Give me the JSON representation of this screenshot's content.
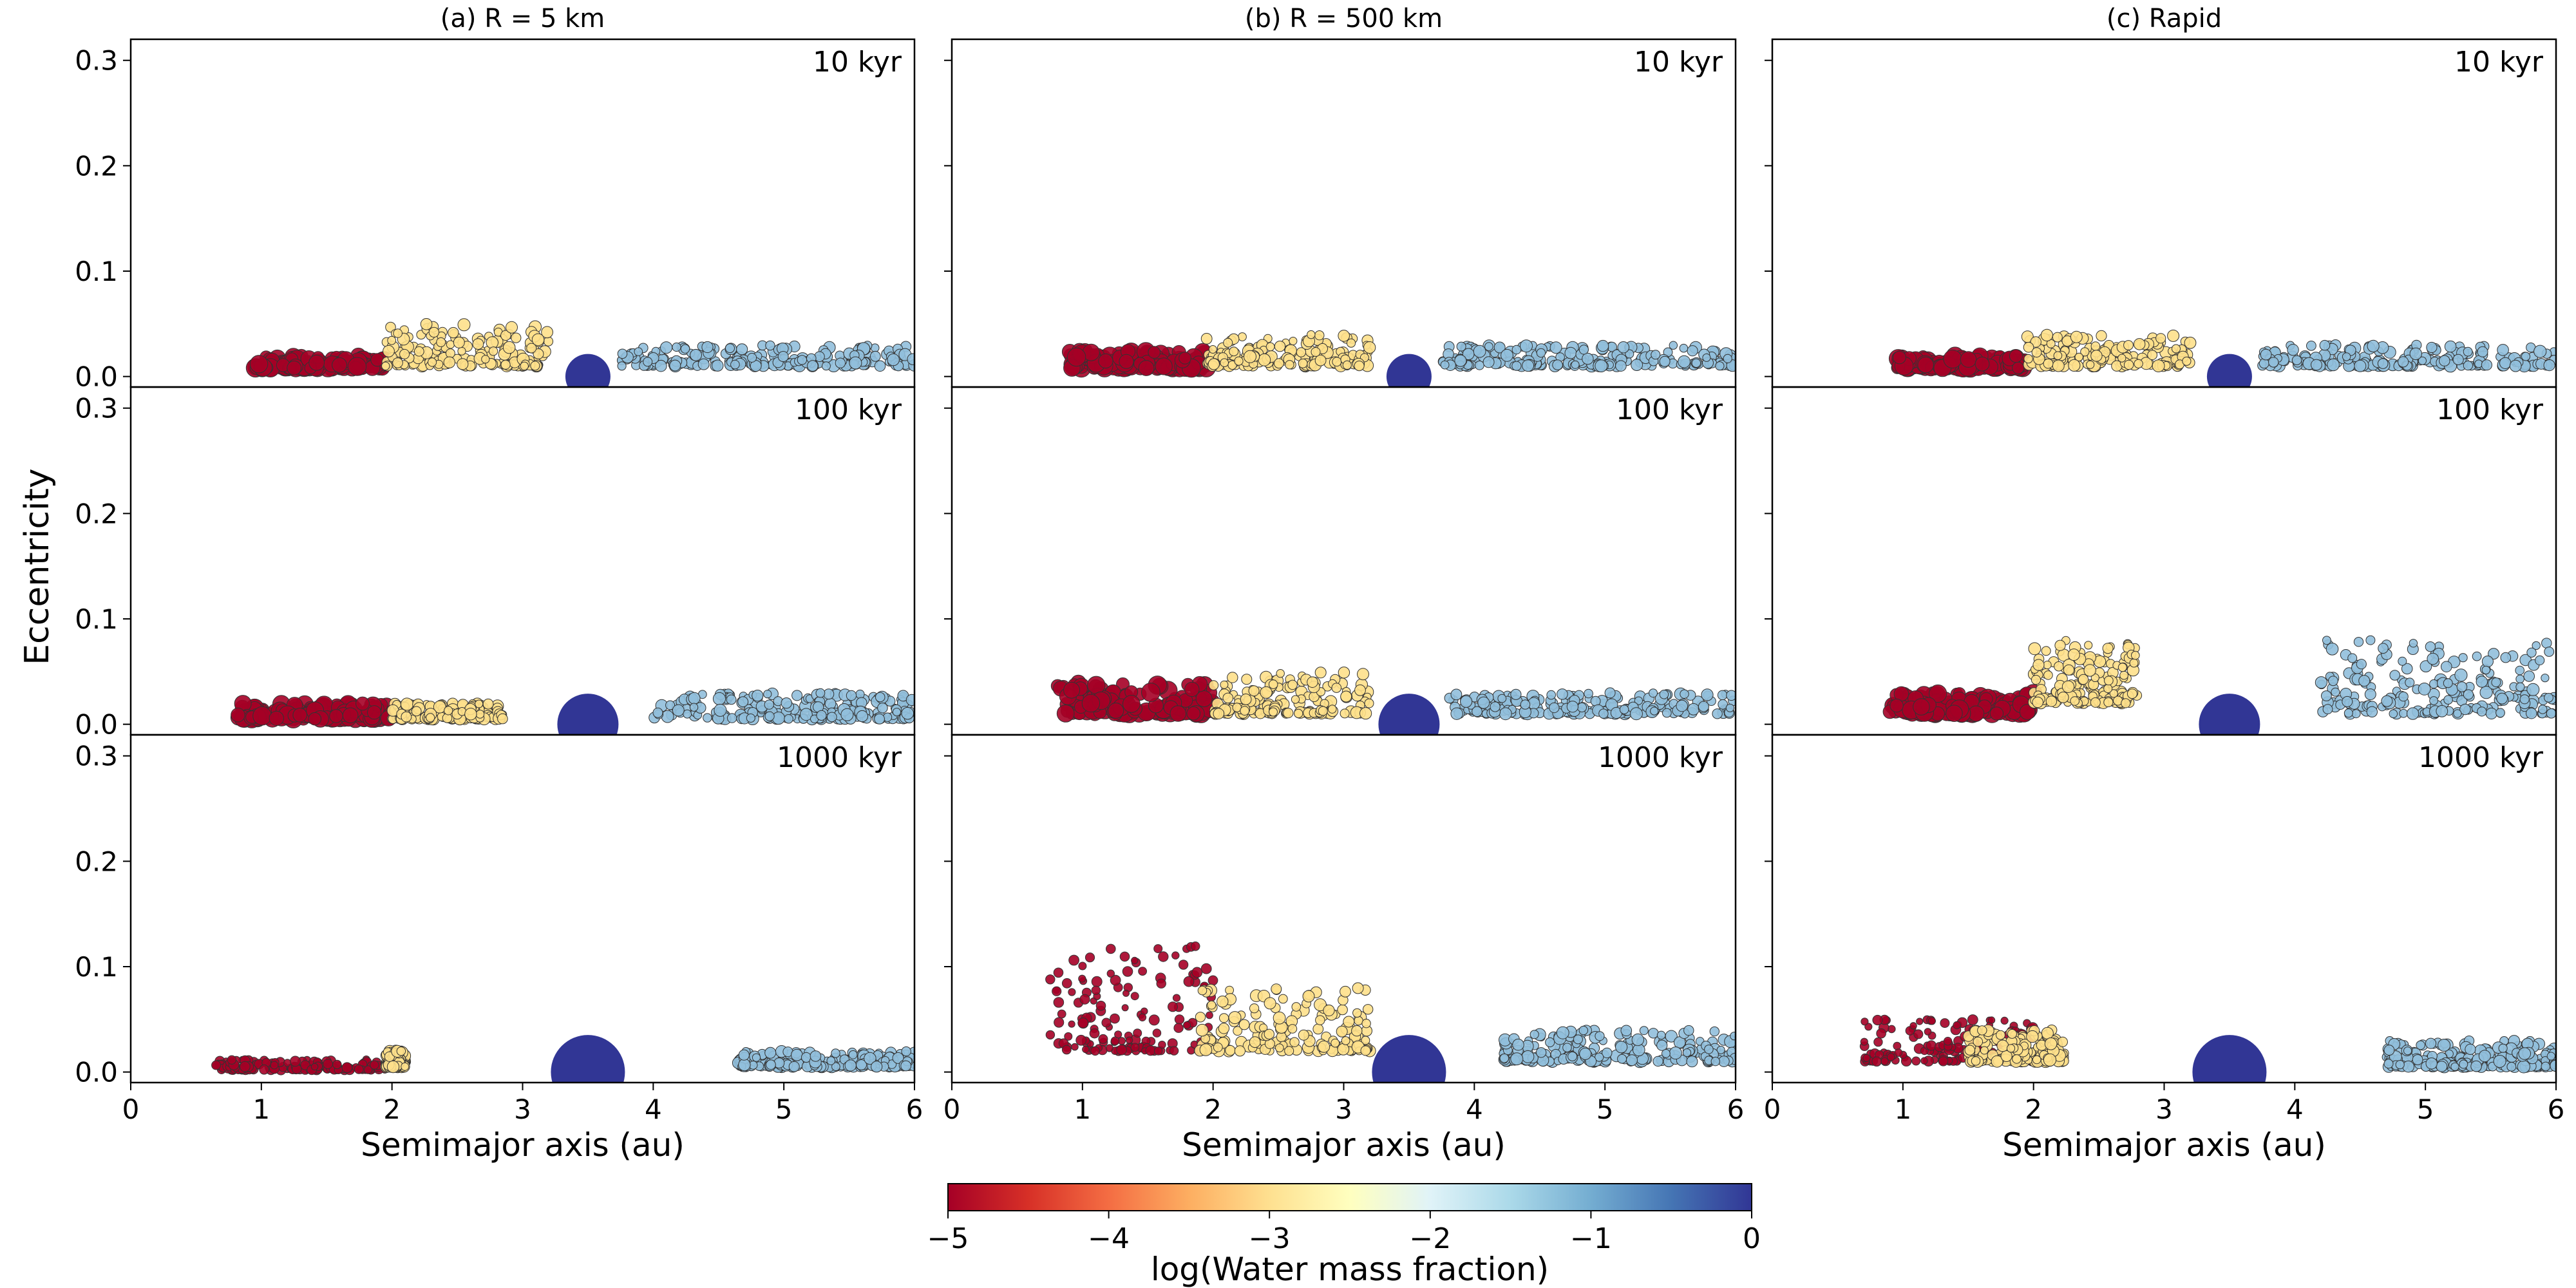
{
  "figure": {
    "ylabel": "Eccentricity",
    "xlabel": "Semimajor axis (au)",
    "colorbar": {
      "label": "log(Water mass fraction)",
      "ticks": [
        "−5",
        "−4",
        "−3",
        "−2",
        "−1",
        "0"
      ],
      "range": [
        -5,
        0
      ],
      "colormap": [
        "#a50026",
        "#d73027",
        "#f46d43",
        "#fdae61",
        "#fee090",
        "#ffffbf",
        "#e0f3f8",
        "#abd9e9",
        "#74add1",
        "#4575b4",
        "#313695"
      ]
    }
  },
  "chart_data": {
    "type": "scatter",
    "xlim": [
      0,
      6
    ],
    "ylim": [
      -0.01,
      0.32
    ],
    "xticks": [
      "0",
      "1",
      "2",
      "3",
      "4",
      "5",
      "6"
    ],
    "yticks": [
      "0.0",
      "0.1",
      "0.2",
      "0.3"
    ],
    "ytick_values": [
      0.0,
      0.1,
      0.2,
      0.3
    ],
    "point_colors": {
      "dry": "#a50026",
      "mid": "#fee08b",
      "wet": "#91bfdb",
      "planet": "#313695"
    },
    "columns": [
      {
        "id": "a",
        "title": "(a) R = 5 km",
        "bands": [
          {
            "t": "10 kyr",
            "dry": [
              0.95,
              1.95,
              0.008,
              0.02
            ],
            "mid": [
              1.95,
              3.2,
              0.01,
              0.05
            ],
            "wet": [
              3.75,
              6.0,
              0.01,
              0.03
            ]
          },
          {
            "t": "100 kyr",
            "dry": [
              0.8,
              2.0,
              0.005,
              0.02
            ],
            "mid": [
              2.0,
              2.85,
              0.005,
              0.02
            ],
            "wet": [
              4.0,
              6.0,
              0.005,
              0.03
            ]
          },
          {
            "t": "1000 kyr",
            "dry": [
              0.65,
              1.95,
              0.002,
              0.012
            ],
            "mid": [
              1.95,
              2.1,
              0.005,
              0.02
            ],
            "wet": [
              4.65,
              6.0,
              0.005,
              0.02
            ]
          }
        ]
      },
      {
        "id": "b",
        "title": "(b) R = 500 km",
        "bands": [
          {
            "t": "10 kyr",
            "dry": [
              0.9,
              1.95,
              0.008,
              0.025
            ],
            "mid": [
              1.95,
              3.2,
              0.01,
              0.04
            ],
            "wet": [
              3.75,
              6.0,
              0.01,
              0.03
            ]
          },
          {
            "t": "100 kyr",
            "dry": [
              0.8,
              2.0,
              0.01,
              0.04
            ],
            "mid": [
              2.0,
              3.2,
              0.01,
              0.05
            ],
            "wet": [
              3.8,
              6.0,
              0.01,
              0.03
            ]
          },
          {
            "t": "1000 kyr",
            "dry": [
              0.75,
              2.0,
              0.02,
              0.12
            ],
            "mid": [
              1.9,
              3.2,
              0.02,
              0.08
            ],
            "wet": [
              4.2,
              6.0,
              0.01,
              0.04
            ]
          }
        ]
      },
      {
        "id": "c",
        "title": "(c) Rapid",
        "bands": [
          {
            "t": "10 kyr",
            "dry": [
              0.95,
              1.95,
              0.008,
              0.02
            ],
            "mid": [
              1.95,
              3.2,
              0.01,
              0.04
            ],
            "wet": [
              3.75,
              6.0,
              0.01,
              0.03
            ]
          },
          {
            "t": "100 kyr",
            "dry": [
              0.9,
              2.0,
              0.01,
              0.03
            ],
            "mid": [
              2.0,
              2.8,
              0.02,
              0.08
            ],
            "wet": [
              4.2,
              6.0,
              0.01,
              0.08
            ]
          },
          {
            "t": "1000 kyr",
            "dry": [
              0.7,
              2.0,
              0.01,
              0.05
            ],
            "mid": [
              1.5,
              2.25,
              0.01,
              0.04
            ],
            "wet": [
              4.7,
              6.0,
              0.005,
              0.03
            ]
          }
        ]
      }
    ],
    "jupiter": {
      "a": 3.5,
      "e": 0.0,
      "radius_rows": [
        14,
        19,
        23
      ]
    }
  }
}
